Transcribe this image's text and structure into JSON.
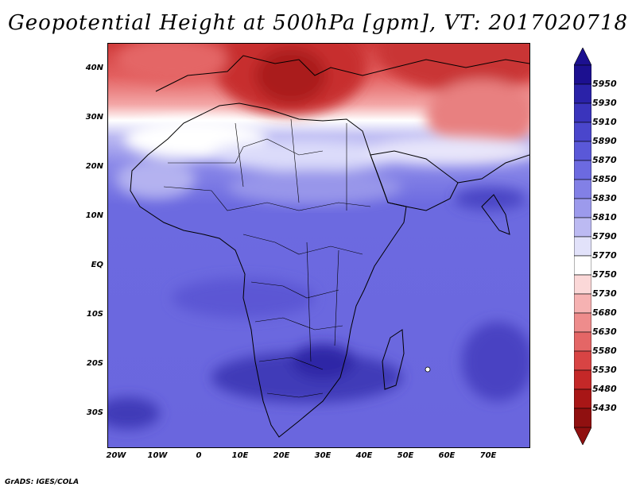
{
  "title": "Geopotential Height at 500hPa [gpm], VT: 2017020718",
  "footer": "GrADS: IGES/COLA",
  "map": {
    "lat_labels": [
      "40N",
      "30N",
      "20N",
      "10N",
      "EQ",
      "10S",
      "20S",
      "30S"
    ],
    "lon_labels": [
      "20W",
      "10W",
      "0",
      "10E",
      "20E",
      "30E",
      "40E",
      "50E",
      "60E",
      "70E"
    ],
    "lon_range": [
      -22,
      80
    ],
    "lat_range": [
      -36,
      45
    ]
  },
  "colorbar": {
    "labels": [
      "5950",
      "5930",
      "5910",
      "5890",
      "5870",
      "5850",
      "5830",
      "5810",
      "5790",
      "5770",
      "5750",
      "5730",
      "5680",
      "5630",
      "5580",
      "5530",
      "5480",
      "5430"
    ],
    "colors": [
      "#1c1090",
      "#2a22a8",
      "#3a34bc",
      "#4a46cc",
      "#5a58d8",
      "#6c6ae0",
      "#8280e6",
      "#9c9aec",
      "#bcbaf2",
      "#e2e2fa",
      "#ffffff",
      "#fbd8d8",
      "#f6b2b2",
      "#ee8c8c",
      "#e46666",
      "#d84444",
      "#c42828",
      "#a81616",
      "#901010"
    ]
  }
}
